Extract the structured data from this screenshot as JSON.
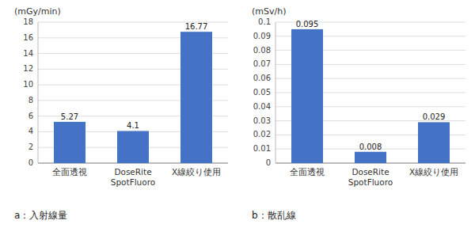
{
  "chart_data": [
    {
      "type": "bar",
      "title": "a：入射線量",
      "ylabel": "(mGy/min)",
      "categories": [
        "全面透視",
        "DoseRite\nSpotFluoro",
        "X線絞り使用"
      ],
      "values": [
        5.27,
        4.1,
        16.77
      ],
      "color": "#4472C4",
      "ylim": [
        0,
        18
      ],
      "yticks": [
        0,
        2,
        4,
        6,
        8,
        10,
        12,
        14,
        16,
        18
      ],
      "grid": true,
      "data_labels": true
    },
    {
      "type": "bar",
      "title": "b：散乱線",
      "ylabel": "(mSv/h)",
      "categories": [
        "全面透視",
        "DoseRite\nSpotFluoro",
        "X線絞り使用"
      ],
      "values": [
        0.095,
        0.008,
        0.029
      ],
      "color": "#4472C4",
      "ylim": [
        0,
        0.1
      ],
      "yticks": [
        0,
        0.01,
        0.02,
        0.03,
        0.04,
        0.05,
        0.06,
        0.07,
        0.08,
        0.09,
        0.1
      ],
      "grid": true,
      "data_labels": true
    }
  ]
}
